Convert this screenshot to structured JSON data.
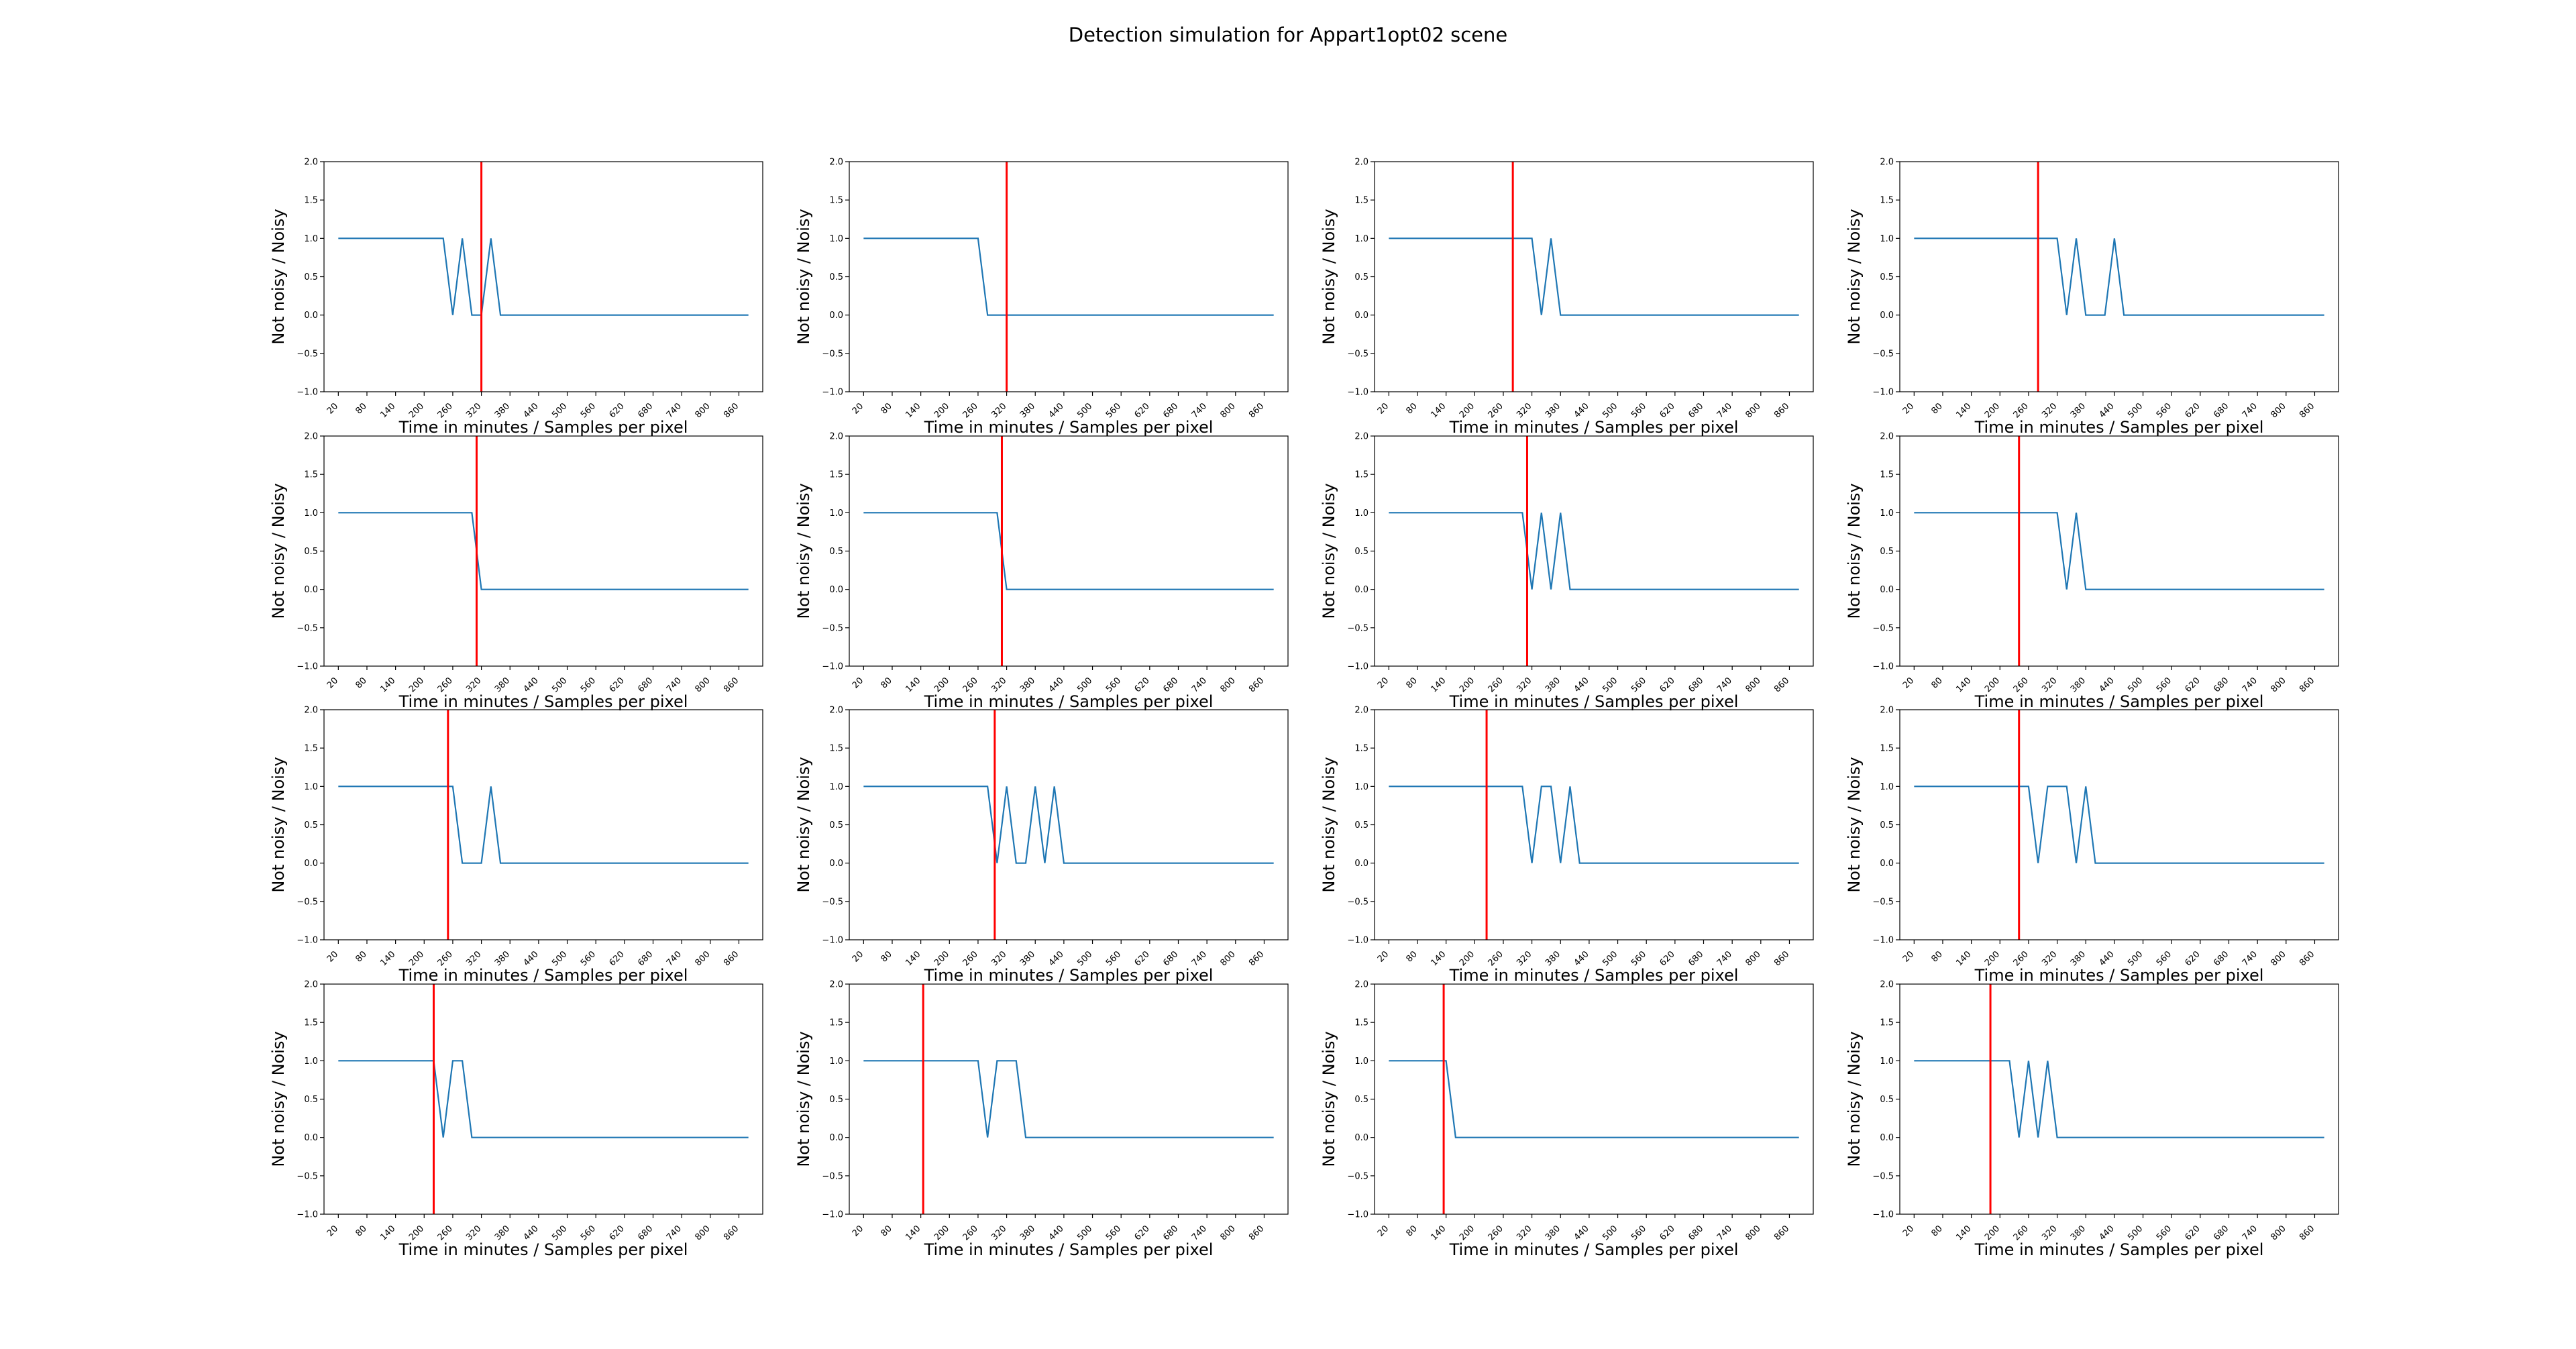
{
  "figure": {
    "title": "Detection simulation for Appart1opt02 scene"
  },
  "colors": {
    "series": "#1f77b4",
    "marker_line": "#ff0000",
    "axes": "#000000"
  },
  "chart_data": {
    "type": "line",
    "layout": "grid 4 rows x 4 columns",
    "xlabel": "Time in minutes / Samples per pixel",
    "ylabel": "Not noisy / Noisy",
    "xticks": [
      "20",
      "80",
      "140",
      "200",
      "260",
      "320",
      "380",
      "440",
      "500",
      "560",
      "620",
      "680",
      "740",
      "800",
      "860"
    ],
    "yticks": [
      "−1.0",
      "−0.5",
      "0.0",
      "0.5",
      "1.0",
      "1.5",
      "2.0"
    ],
    "ylim": [
      -1.0,
      2.0
    ],
    "xlim": [
      -10,
      910
    ],
    "x": [
      20,
      40,
      60,
      80,
      100,
      120,
      140,
      160,
      180,
      200,
      220,
      240,
      260,
      280,
      300,
      320,
      340,
      360,
      380,
      400,
      420,
      440,
      460,
      480,
      500,
      520,
      540,
      560,
      580,
      600,
      620,
      640,
      660,
      680,
      700,
      720,
      740,
      760,
      780,
      800,
      820,
      840,
      860,
      880
    ],
    "subplots": [
      {
        "marker_x": 320,
        "values": [
          1,
          1,
          1,
          1,
          1,
          1,
          1,
          1,
          1,
          1,
          1,
          1,
          0,
          1,
          0,
          0,
          1,
          0,
          0,
          0,
          0,
          0,
          0,
          0,
          0,
          0,
          0,
          0,
          0,
          0,
          0,
          0,
          0,
          0,
          0,
          0,
          0,
          0,
          0,
          0,
          0,
          0,
          0,
          0
        ]
      },
      {
        "marker_x": 320,
        "values": [
          1,
          1,
          1,
          1,
          1,
          1,
          1,
          1,
          1,
          1,
          1,
          1,
          1,
          0,
          0,
          0,
          0,
          0,
          0,
          0,
          0,
          0,
          0,
          0,
          0,
          0,
          0,
          0,
          0,
          0,
          0,
          0,
          0,
          0,
          0,
          0,
          0,
          0,
          0,
          0,
          0,
          0,
          0,
          0
        ]
      },
      {
        "marker_x": 280,
        "values": [
          1,
          1,
          1,
          1,
          1,
          1,
          1,
          1,
          1,
          1,
          1,
          1,
          1,
          1,
          1,
          1,
          0,
          1,
          0,
          0,
          0,
          0,
          0,
          0,
          0,
          0,
          0,
          0,
          0,
          0,
          0,
          0,
          0,
          0,
          0,
          0,
          0,
          0,
          0,
          0,
          0,
          0,
          0,
          0
        ]
      },
      {
        "marker_x": 280,
        "values": [
          1,
          1,
          1,
          1,
          1,
          1,
          1,
          1,
          1,
          1,
          1,
          1,
          1,
          1,
          1,
          1,
          0,
          1,
          0,
          0,
          0,
          1,
          0,
          0,
          0,
          0,
          0,
          0,
          0,
          0,
          0,
          0,
          0,
          0,
          0,
          0,
          0,
          0,
          0,
          0,
          0,
          0,
          0,
          0
        ]
      },
      {
        "marker_x": 310,
        "values": [
          1,
          1,
          1,
          1,
          1,
          1,
          1,
          1,
          1,
          1,
          1,
          1,
          1,
          1,
          1,
          0,
          0,
          0,
          0,
          0,
          0,
          0,
          0,
          0,
          0,
          0,
          0,
          0,
          0,
          0,
          0,
          0,
          0,
          0,
          0,
          0,
          0,
          0,
          0,
          0,
          0,
          0,
          0,
          0
        ]
      },
      {
        "marker_x": 310,
        "values": [
          1,
          1,
          1,
          1,
          1,
          1,
          1,
          1,
          1,
          1,
          1,
          1,
          1,
          1,
          1,
          0,
          0,
          0,
          0,
          0,
          0,
          0,
          0,
          0,
          0,
          0,
          0,
          0,
          0,
          0,
          0,
          0,
          0,
          0,
          0,
          0,
          0,
          0,
          0,
          0,
          0,
          0,
          0,
          0
        ]
      },
      {
        "marker_x": 310,
        "values": [
          1,
          1,
          1,
          1,
          1,
          1,
          1,
          1,
          1,
          1,
          1,
          1,
          1,
          1,
          1,
          0,
          1,
          0,
          1,
          0,
          0,
          0,
          0,
          0,
          0,
          0,
          0,
          0,
          0,
          0,
          0,
          0,
          0,
          0,
          0,
          0,
          0,
          0,
          0,
          0,
          0,
          0,
          0,
          0
        ]
      },
      {
        "marker_x": 240,
        "values": [
          1,
          1,
          1,
          1,
          1,
          1,
          1,
          1,
          1,
          1,
          1,
          1,
          1,
          1,
          1,
          1,
          0,
          1,
          0,
          0,
          0,
          0,
          0,
          0,
          0,
          0,
          0,
          0,
          0,
          0,
          0,
          0,
          0,
          0,
          0,
          0,
          0,
          0,
          0,
          0,
          0,
          0,
          0,
          0
        ]
      },
      {
        "marker_x": 250,
        "values": [
          1,
          1,
          1,
          1,
          1,
          1,
          1,
          1,
          1,
          1,
          1,
          1,
          1,
          0,
          0,
          0,
          1,
          0,
          0,
          0,
          0,
          0,
          0,
          0,
          0,
          0,
          0,
          0,
          0,
          0,
          0,
          0,
          0,
          0,
          0,
          0,
          0,
          0,
          0,
          0,
          0,
          0,
          0,
          0
        ]
      },
      {
        "marker_x": 295,
        "values": [
          1,
          1,
          1,
          1,
          1,
          1,
          1,
          1,
          1,
          1,
          1,
          1,
          1,
          1,
          0,
          1,
          0,
          0,
          1,
          0,
          1,
          0,
          0,
          0,
          0,
          0,
          0,
          0,
          0,
          0,
          0,
          0,
          0,
          0,
          0,
          0,
          0,
          0,
          0,
          0,
          0,
          0,
          0,
          0
        ]
      },
      {
        "marker_x": 225,
        "values": [
          1,
          1,
          1,
          1,
          1,
          1,
          1,
          1,
          1,
          1,
          1,
          1,
          1,
          1,
          1,
          0,
          1,
          1,
          0,
          1,
          0,
          0,
          0,
          0,
          0,
          0,
          0,
          0,
          0,
          0,
          0,
          0,
          0,
          0,
          0,
          0,
          0,
          0,
          0,
          0,
          0,
          0,
          0,
          0
        ]
      },
      {
        "marker_x": 240,
        "values": [
          1,
          1,
          1,
          1,
          1,
          1,
          1,
          1,
          1,
          1,
          1,
          1,
          1,
          0,
          1,
          1,
          1,
          0,
          1,
          0,
          0,
          0,
          0,
          0,
          0,
          0,
          0,
          0,
          0,
          0,
          0,
          0,
          0,
          0,
          0,
          0,
          0,
          0,
          0,
          0,
          0,
          0,
          0,
          0
        ]
      },
      {
        "marker_x": 220,
        "values": [
          1,
          1,
          1,
          1,
          1,
          1,
          1,
          1,
          1,
          1,
          1,
          0,
          1,
          1,
          0,
          0,
          0,
          0,
          0,
          0,
          0,
          0,
          0,
          0,
          0,
          0,
          0,
          0,
          0,
          0,
          0,
          0,
          0,
          0,
          0,
          0,
          0,
          0,
          0,
          0,
          0,
          0,
          0,
          0
        ]
      },
      {
        "marker_x": 145,
        "values": [
          1,
          1,
          1,
          1,
          1,
          1,
          1,
          1,
          1,
          1,
          1,
          1,
          1,
          0,
          1,
          1,
          1,
          0,
          0,
          0,
          0,
          0,
          0,
          0,
          0,
          0,
          0,
          0,
          0,
          0,
          0,
          0,
          0,
          0,
          0,
          0,
          0,
          0,
          0,
          0,
          0,
          0,
          0,
          0
        ]
      },
      {
        "marker_x": 135,
        "values": [
          1,
          1,
          1,
          1,
          1,
          1,
          1,
          0,
          0,
          0,
          0,
          0,
          0,
          0,
          0,
          0,
          0,
          0,
          0,
          0,
          0,
          0,
          0,
          0,
          0,
          0,
          0,
          0,
          0,
          0,
          0,
          0,
          0,
          0,
          0,
          0,
          0,
          0,
          0,
          0,
          0,
          0,
          0,
          0
        ]
      },
      {
        "marker_x": 180,
        "values": [
          1,
          1,
          1,
          1,
          1,
          1,
          1,
          1,
          1,
          1,
          1,
          0,
          1,
          0,
          1,
          0,
          0,
          0,
          0,
          0,
          0,
          0,
          0,
          0,
          0,
          0,
          0,
          0,
          0,
          0,
          0,
          0,
          0,
          0,
          0,
          0,
          0,
          0,
          0,
          0,
          0,
          0,
          0,
          0
        ]
      }
    ]
  }
}
